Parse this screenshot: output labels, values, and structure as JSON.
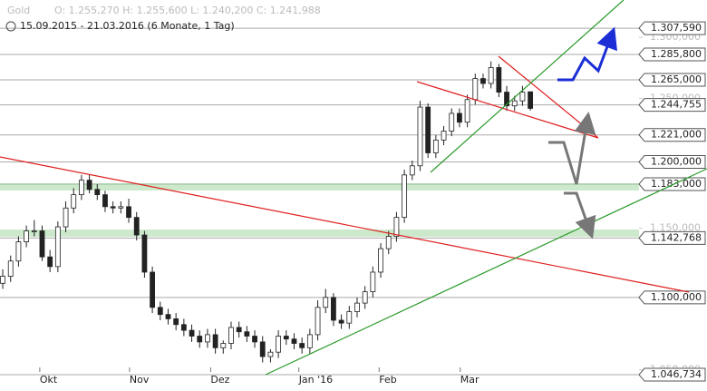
{
  "header": {
    "symbol": "Gold",
    "ohlc_text": "O: 1.255,270  H: 1.255,600  L: 1.240,200  C: 1.241,988",
    "range": "15.09.2015 - 21.03.2016 (6 Monate, 1 Tag)"
  },
  "chart_data": {
    "type": "candlestick",
    "log_scale": true,
    "ylim": [
      1042.5,
      1331.5
    ],
    "xlim": [
      -0.35,
      80.8
    ],
    "yticks": [
      {
        "value": 1300,
        "label": "1.300,000"
      },
      {
        "value": 1250,
        "label": "1.250,000"
      },
      {
        "value": 1150,
        "label": "1.150,000"
      },
      {
        "value": 1050,
        "label": "1.050,000"
      }
    ],
    "levels": [
      {
        "value": 1307.59,
        "label": "1.307,590"
      },
      {
        "value": 1285.8,
        "label": "1.285,800"
      },
      {
        "value": 1265,
        "label": "1.265,000"
      },
      {
        "value": 1244.755,
        "label": "1.244,755"
      },
      {
        "value": 1221,
        "label": "1.221,000"
      },
      {
        "value": 1200,
        "label": "1.200,000"
      },
      {
        "value": 1183,
        "label": "1.183,000"
      },
      {
        "value": 1142.768,
        "label": "1.142,768"
      },
      {
        "value": 1100,
        "label": "1.100,000"
      },
      {
        "value": 1046.734,
        "label": "1.046,734"
      }
    ],
    "xticks": [
      {
        "value": 4.7,
        "label": "Okt"
      },
      {
        "value": 16.1,
        "label": "Nov"
      },
      {
        "value": 26.4,
        "label": "Dez"
      },
      {
        "value": 37.6,
        "label": "Jan '16"
      },
      {
        "value": 47.8,
        "label": "Feb"
      },
      {
        "value": 58.1,
        "label": "Mar"
      }
    ],
    "open": [
      1110,
      1115,
      1126,
      1140,
      1148,
      1148,
      1129,
      1122,
      1151,
      1165,
      1175,
      1186,
      1179,
      1175,
      1166,
      1165,
      1166,
      1158,
      1145,
      1118,
      1093,
      1088,
      1085,
      1081,
      1077,
      1073,
      1069,
      1074,
      1065,
      1068,
      1079,
      1076,
      1073,
      1069,
      1059,
      1062,
      1073,
      1071,
      1068,
      1065,
      1074,
      1093,
      1100,
      1084,
      1082,
      1090,
      1096,
      1104,
      1118,
      1135,
      1144,
      1158,
      1190,
      1197,
      1243,
      1207,
      1217,
      1224,
      1238,
      1231,
      1249,
      1266,
      1262,
      1275,
      1255,
      1244,
      1248,
      1255.27
    ],
    "high": [
      1120,
      1130,
      1144,
      1152,
      1156,
      1152,
      1134,
      1155,
      1170,
      1180,
      1190,
      1190,
      1183,
      1178,
      1170,
      1170,
      1172,
      1162,
      1148,
      1122,
      1097,
      1092,
      1089,
      1085,
      1081,
      1077,
      1078,
      1078,
      1070,
      1083,
      1083,
      1080,
      1077,
      1073,
      1064,
      1077,
      1077,
      1075,
      1072,
      1078,
      1098,
      1106,
      1103,
      1088,
      1094,
      1100,
      1108,
      1122,
      1139,
      1148,
      1162,
      1194,
      1201,
      1248,
      1246,
      1221,
      1228,
      1242,
      1242,
      1253,
      1270,
      1270,
      1280,
      1278,
      1260,
      1252,
      1260,
      1255.6
    ],
    "low": [
      1106,
      1111,
      1122,
      1136,
      1144,
      1126,
      1118,
      1118,
      1147,
      1161,
      1171,
      1176,
      1171,
      1162,
      1161,
      1161,
      1154,
      1141,
      1114,
      1089,
      1084,
      1081,
      1077,
      1073,
      1069,
      1065,
      1065,
      1061,
      1061,
      1064,
      1072,
      1069,
      1065,
      1055,
      1055,
      1058,
      1067,
      1064,
      1061,
      1061,
      1070,
      1089,
      1080,
      1078,
      1078,
      1086,
      1092,
      1100,
      1114,
      1131,
      1140,
      1154,
      1186,
      1193,
      1203,
      1203,
      1213,
      1220,
      1227,
      1227,
      1245,
      1258,
      1258,
      1251,
      1240,
      1240,
      1244,
      1240.2
    ],
    "close": [
      1115,
      1126,
      1140,
      1148,
      1148,
      1129,
      1122,
      1151,
      1165,
      1175,
      1186,
      1179,
      1175,
      1166,
      1165,
      1166,
      1158,
      1145,
      1118,
      1093,
      1088,
      1085,
      1081,
      1077,
      1073,
      1069,
      1074,
      1065,
      1068,
      1079,
      1076,
      1073,
      1069,
      1059,
      1062,
      1073,
      1071,
      1068,
      1065,
      1074,
      1093,
      1100,
      1084,
      1082,
      1090,
      1096,
      1104,
      1118,
      1135,
      1144,
      1158,
      1190,
      1197,
      1243,
      1207,
      1217,
      1224,
      1238,
      1231,
      1249,
      1266,
      1262,
      1275,
      1255,
      1244,
      1248,
      1255,
      1241.988
    ]
  }
}
